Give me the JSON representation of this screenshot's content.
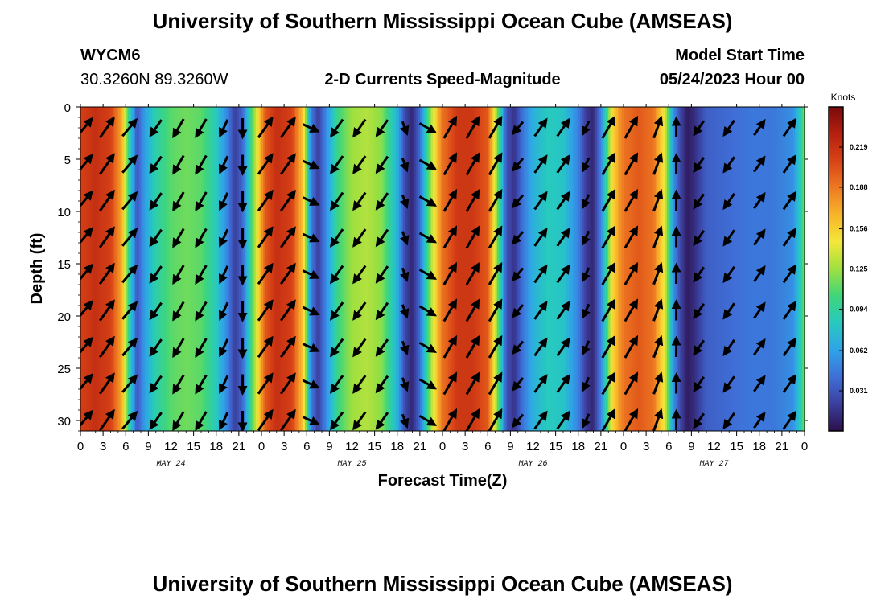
{
  "title": "University of Southern Mississippi Ocean Cube (AMSEAS)",
  "footer_title": "University of Southern Mississippi Ocean Cube (AMSEAS)",
  "station": {
    "id": "WYCM6",
    "coords": "30.3260N  89.3260W"
  },
  "subtitle": "2-D Currents Speed-Magnitude",
  "model_start": {
    "label": "Model Start Time",
    "value": "05/24/2023 Hour 00"
  },
  "colors": {
    "scale": [
      "#2c0f4a",
      "#3b3f9e",
      "#3f6fd8",
      "#2fa3e8",
      "#27c9c0",
      "#3fd67a",
      "#9ee040",
      "#f4e73a",
      "#f7b52a",
      "#ee7a22",
      "#d84316",
      "#b52011",
      "#7a0a0a"
    ],
    "arrow": "#000000"
  },
  "chart_data": {
    "type": "heatmap",
    "title": "2-D Currents Speed-Magnitude",
    "xlabel": "Forecast Time(Z)",
    "ylabel": "Depth (ft)",
    "xlim": [
      0,
      96
    ],
    "ylim": [
      31,
      0
    ],
    "x_ticks": [
      0,
      3,
      6,
      9,
      12,
      15,
      18,
      21,
      24,
      27,
      30,
      33,
      36,
      39,
      42,
      45,
      48,
      51,
      54,
      57,
      60,
      63,
      66,
      69,
      72,
      75,
      78,
      81,
      84,
      87,
      90,
      93,
      96
    ],
    "x_tick_labels": [
      "0",
      "3",
      "6",
      "9",
      "12",
      "15",
      "18",
      "21",
      "0",
      "3",
      "6",
      "9",
      "12",
      "15",
      "18",
      "21",
      "0",
      "3",
      "6",
      "9",
      "12",
      "15",
      "18",
      "21",
      "0",
      "3",
      "6",
      "9",
      "12",
      "15",
      "18",
      "21",
      "0"
    ],
    "y_ticks": [
      0,
      5,
      10,
      15,
      20,
      25,
      30
    ],
    "y_tick_labels": [
      "0",
      "5",
      "10",
      "15",
      "20",
      "25",
      "30"
    ],
    "day_labels": [
      {
        "hour": 12,
        "label": "MAY 24"
      },
      {
        "hour": 36,
        "label": "MAY 25"
      },
      {
        "hour": 60,
        "label": "MAY 26"
      },
      {
        "hour": 84,
        "label": "MAY 27"
      }
    ],
    "colorbar": {
      "unit": "Knots",
      "min": 0.0,
      "max": 0.25,
      "ticks": [
        0.031,
        0.062,
        0.094,
        0.125,
        0.156,
        0.188,
        0.219
      ],
      "tick_labels": [
        "0.031",
        "0.062",
        "0.094",
        "0.125",
        "0.156",
        "0.188",
        "0.219"
      ]
    },
    "speed_by_hour": [
      {
        "hour": 0,
        "speed": 0.21
      },
      {
        "hour": 2,
        "speed": 0.22
      },
      {
        "hour": 4,
        "speed": 0.21
      },
      {
        "hour": 5.5,
        "speed": 0.17
      },
      {
        "hour": 6.5,
        "speed": 0.09
      },
      {
        "hour": 7.5,
        "speed": 0.03
      },
      {
        "hour": 8.5,
        "speed": 0.06
      },
      {
        "hour": 10,
        "speed": 0.09
      },
      {
        "hour": 12,
        "speed": 0.11
      },
      {
        "hour": 14,
        "speed": 0.115
      },
      {
        "hour": 16,
        "speed": 0.11
      },
      {
        "hour": 18,
        "speed": 0.085
      },
      {
        "hour": 19.5,
        "speed": 0.05
      },
      {
        "hour": 20.5,
        "speed": 0.02
      },
      {
        "hour": 21.5,
        "speed": 0.04
      },
      {
        "hour": 23,
        "speed": 0.12
      },
      {
        "hour": 24.5,
        "speed": 0.2
      },
      {
        "hour": 26,
        "speed": 0.22
      },
      {
        "hour": 28,
        "speed": 0.21
      },
      {
        "hour": 29.5,
        "speed": 0.16
      },
      {
        "hour": 30.5,
        "speed": 0.05
      },
      {
        "hour": 31.5,
        "speed": 0.02
      },
      {
        "hour": 32.5,
        "speed": 0.05
      },
      {
        "hour": 34,
        "speed": 0.1
      },
      {
        "hour": 36,
        "speed": 0.125
      },
      {
        "hour": 38,
        "speed": 0.13
      },
      {
        "hour": 40,
        "speed": 0.12
      },
      {
        "hour": 42,
        "speed": 0.07
      },
      {
        "hour": 43,
        "speed": 0.025
      },
      {
        "hour": 44,
        "speed": 0.01
      },
      {
        "hour": 45,
        "speed": 0.04
      },
      {
        "hour": 46.5,
        "speed": 0.13
      },
      {
        "hour": 48,
        "speed": 0.19
      },
      {
        "hour": 50,
        "speed": 0.215
      },
      {
        "hour": 52,
        "speed": 0.215
      },
      {
        "hour": 54,
        "speed": 0.2
      },
      {
        "hour": 55.5,
        "speed": 0.1
      },
      {
        "hour": 56.5,
        "speed": 0.03
      },
      {
        "hour": 57.5,
        "speed": 0.015
      },
      {
        "hour": 58.5,
        "speed": 0.04
      },
      {
        "hour": 60,
        "speed": 0.07
      },
      {
        "hour": 62,
        "speed": 0.085
      },
      {
        "hour": 64,
        "speed": 0.08
      },
      {
        "hour": 66,
        "speed": 0.05
      },
      {
        "hour": 67,
        "speed": 0.02
      },
      {
        "hour": 68,
        "speed": 0.01
      },
      {
        "hour": 69,
        "speed": 0.05
      },
      {
        "hour": 70.5,
        "speed": 0.15
      },
      {
        "hour": 72,
        "speed": 0.19
      },
      {
        "hour": 74,
        "speed": 0.2
      },
      {
        "hour": 76,
        "speed": 0.19
      },
      {
        "hour": 77.5,
        "speed": 0.14
      },
      {
        "hour": 78.5,
        "speed": 0.06
      },
      {
        "hour": 79.5,
        "speed": 0.025
      },
      {
        "hour": 80.5,
        "speed": 0.005
      },
      {
        "hour": 81.5,
        "speed": 0.015
      },
      {
        "hour": 83,
        "speed": 0.035
      },
      {
        "hour": 86,
        "speed": 0.04
      },
      {
        "hour": 89,
        "speed": 0.045
      },
      {
        "hour": 92,
        "speed": 0.045
      },
      {
        "hour": 94.5,
        "speed": 0.055
      },
      {
        "hour": 95.5,
        "speed": 0.09
      },
      {
        "hour": 96,
        "speed": 0.12
      }
    ],
    "arrow_rows_ft": [
      2,
      5.5,
      9,
      12.5,
      16,
      19.5,
      23,
      26.5,
      30
    ],
    "vector_columns": [
      {
        "hour": 0.5,
        "dir_deg": 40,
        "len": 1.0
      },
      {
        "hour": 3.5,
        "dir_deg": 35,
        "len": 1.0
      },
      {
        "hour": 6.5,
        "dir_deg": 40,
        "len": 0.9
      },
      {
        "hour": 10,
        "dir_deg": 215,
        "len": 0.8
      },
      {
        "hour": 13,
        "dir_deg": 210,
        "len": 0.85
      },
      {
        "hour": 16,
        "dir_deg": 210,
        "len": 0.85
      },
      {
        "hour": 19,
        "dir_deg": 205,
        "len": 0.75
      },
      {
        "hour": 21.5,
        "dir_deg": 180,
        "len": 0.8
      },
      {
        "hour": 24.5,
        "dir_deg": 35,
        "len": 1.0
      },
      {
        "hour": 27.5,
        "dir_deg": 35,
        "len": 1.0
      },
      {
        "hour": 30.5,
        "dir_deg": 115,
        "len": 0.7
      },
      {
        "hour": 34,
        "dir_deg": 215,
        "len": 0.85
      },
      {
        "hour": 37,
        "dir_deg": 215,
        "len": 0.85
      },
      {
        "hour": 40,
        "dir_deg": 215,
        "len": 0.8
      },
      {
        "hour": 43,
        "dir_deg": 160,
        "len": 0.55
      },
      {
        "hour": 46,
        "dir_deg": 120,
        "len": 0.75
      },
      {
        "hour": 49,
        "dir_deg": 30,
        "len": 1.0
      },
      {
        "hour": 52,
        "dir_deg": 30,
        "len": 1.0
      },
      {
        "hour": 55,
        "dir_deg": 30,
        "len": 1.0
      },
      {
        "hour": 58,
        "dir_deg": 220,
        "len": 0.65
      },
      {
        "hour": 61,
        "dir_deg": 35,
        "len": 0.85
      },
      {
        "hour": 64,
        "dir_deg": 35,
        "len": 0.85
      },
      {
        "hour": 67,
        "dir_deg": 205,
        "len": 0.6
      },
      {
        "hour": 70,
        "dir_deg": 30,
        "len": 1.0
      },
      {
        "hour": 73,
        "dir_deg": 30,
        "len": 1.0
      },
      {
        "hour": 76.5,
        "dir_deg": 20,
        "len": 0.9
      },
      {
        "hour": 79,
        "dir_deg": 0,
        "len": 0.8
      },
      {
        "hour": 82,
        "dir_deg": 215,
        "len": 0.7
      },
      {
        "hour": 86,
        "dir_deg": 215,
        "len": 0.75
      },
      {
        "hour": 90,
        "dir_deg": 35,
        "len": 0.75
      },
      {
        "hour": 94,
        "dir_deg": 35,
        "len": 0.85
      }
    ]
  }
}
